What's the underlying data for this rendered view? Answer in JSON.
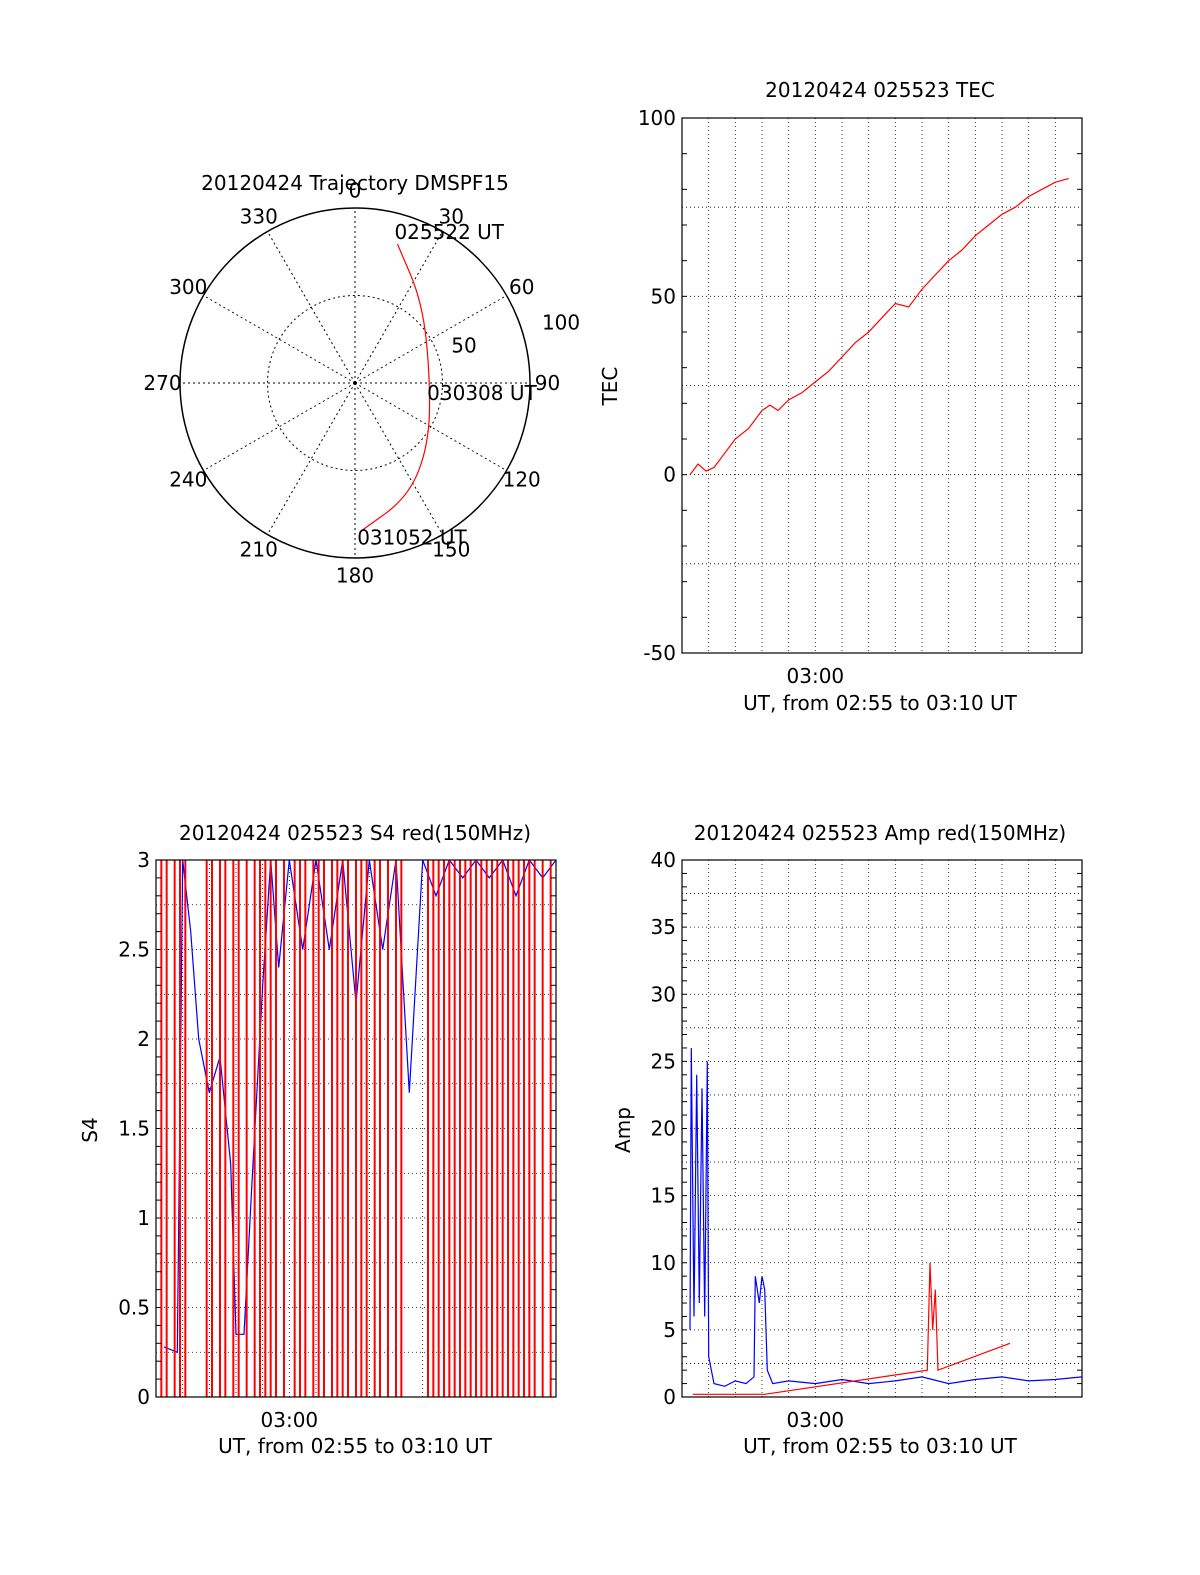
{
  "chart_data": [
    {
      "type": "polar",
      "title": "20120424 Trajectory DMSPF15",
      "azimuth_ticks": [
        "0",
        "30",
        "60",
        "90",
        "120",
        "150",
        "180",
        "210",
        "240",
        "270",
        "300",
        "330"
      ],
      "radial_ticks": [
        "50",
        "100"
      ],
      "radial_range": [
        0,
        100
      ],
      "grid": true,
      "series": [
        {
          "color": "#ff0000",
          "points": [
            {
              "az": 17,
              "r": 83
            },
            {
              "az": 40,
              "r": 60
            },
            {
              "az": 87,
              "r": 43
            },
            {
              "az": 130,
              "r": 55
            },
            {
              "az": 155,
              "r": 72
            },
            {
              "az": 178,
              "r": 85
            }
          ]
        }
      ],
      "annotations": [
        {
          "text": "025522 UT",
          "az": 17,
          "r": 83
        },
        {
          "text": "030308 UT",
          "az": 87,
          "r": 43
        },
        {
          "text": "031052 UT",
          "az": 178,
          "r": 85
        }
      ]
    },
    {
      "type": "line",
      "title": "20120424 025523 TEC",
      "xlabel": "UT, from 02:55 to 03:10 UT",
      "ylabel": "TEC",
      "xlim": [
        0,
        15
      ],
      "ylim": [
        -50,
        100
      ],
      "y_ticks": [
        "-50",
        "0",
        "50",
        "100"
      ],
      "x_ticks": [
        {
          "at": 5,
          "label": "03:00"
        }
      ],
      "grid": true,
      "series": [
        {
          "color": "#ff0000",
          "points": [
            [
              0.3,
              0
            ],
            [
              0.6,
              3
            ],
            [
              0.9,
              1
            ],
            [
              1.2,
              2
            ],
            [
              1.5,
              5
            ],
            [
              2.0,
              10
            ],
            [
              2.5,
              13
            ],
            [
              3.0,
              18
            ],
            [
              3.3,
              19.5
            ],
            [
              3.6,
              18
            ],
            [
              4.0,
              21
            ],
            [
              4.5,
              23
            ],
            [
              5.0,
              26
            ],
            [
              5.5,
              29
            ],
            [
              6.0,
              33
            ],
            [
              6.5,
              37
            ],
            [
              7.0,
              40
            ],
            [
              7.5,
              44
            ],
            [
              8.0,
              48
            ],
            [
              8.5,
              47
            ],
            [
              9.0,
              52
            ],
            [
              9.5,
              56
            ],
            [
              10.0,
              60
            ],
            [
              10.5,
              63
            ],
            [
              11.0,
              67
            ],
            [
              11.5,
              70
            ],
            [
              12.0,
              73
            ],
            [
              12.5,
              75
            ],
            [
              13.0,
              78
            ],
            [
              13.5,
              80
            ],
            [
              14.0,
              82
            ],
            [
              14.5,
              83
            ]
          ]
        }
      ]
    },
    {
      "type": "line",
      "title": "20120424 025523 S4 red(150MHz)",
      "xlabel": "UT, from 02:55 to 03:10 UT",
      "ylabel": "S4",
      "xlim": [
        0,
        15
      ],
      "ylim": [
        0,
        3
      ],
      "y_ticks": [
        "0",
        "0.5",
        "1",
        "1.5",
        "2",
        "2.5",
        "3"
      ],
      "x_ticks": [
        {
          "at": 5,
          "label": "03:00"
        }
      ],
      "grid": true,
      "series": [
        {
          "color": "#0000ff",
          "points": [
            [
              0.3,
              0.28
            ],
            [
              0.8,
              0.25
            ],
            [
              1.0,
              3
            ],
            [
              1.3,
              2.6
            ],
            [
              1.6,
              2.0
            ],
            [
              2.0,
              1.7
            ],
            [
              2.4,
              1.9
            ],
            [
              2.8,
              1.3
            ],
            [
              3.0,
              0.35
            ],
            [
              3.3,
              0.35
            ],
            [
              3.6,
              1.2
            ],
            [
              4.0,
              2.3
            ],
            [
              4.3,
              3
            ],
            [
              4.6,
              2.4
            ],
            [
              5.0,
              3
            ],
            [
              5.5,
              2.5
            ],
            [
              6.0,
              3
            ],
            [
              6.5,
              2.5
            ],
            [
              7.0,
              3
            ],
            [
              7.5,
              2.2
            ],
            [
              8.0,
              3
            ],
            [
              8.5,
              2.5
            ],
            [
              9.0,
              3
            ],
            [
              9.5,
              1.7
            ],
            [
              10.0,
              3
            ],
            [
              10.5,
              2.8
            ],
            [
              11.0,
              3
            ],
            [
              11.5,
              2.9
            ],
            [
              12.0,
              3
            ],
            [
              12.5,
              2.9
            ],
            [
              13.0,
              3
            ],
            [
              13.5,
              2.8
            ],
            [
              14.0,
              3
            ],
            [
              14.5,
              2.9
            ],
            [
              15.0,
              3
            ]
          ]
        },
        {
          "color": "#ff0000",
          "spikes": [
            0.2,
            0.4,
            0.7,
            0.9,
            1.1,
            1.9,
            2.1,
            2.4,
            2.6,
            2.9,
            3.1,
            3.4,
            3.7,
            3.9,
            4.1,
            4.3,
            4.5,
            4.8,
            5.2,
            5.4,
            5.6,
            5.9,
            6.1,
            6.3,
            6.6,
            6.8,
            7.0,
            7.2,
            7.5,
            7.7,
            7.9,
            8.2,
            8.4,
            8.7,
            9.0,
            9.2,
            10.2,
            10.4,
            10.6,
            10.8,
            11.0,
            11.2,
            11.4,
            11.6,
            11.8,
            12.0,
            12.2,
            12.4,
            12.6,
            12.8,
            13.0,
            13.2,
            13.4,
            13.6,
            13.8,
            14.0,
            14.2,
            14.5,
            14.8
          ]
        }
      ]
    },
    {
      "type": "line",
      "title": "20120424 025523 Amp red(150MHz)",
      "xlabel": "UT, from 02:55 to 03:10 UT",
      "ylabel": "Amp",
      "xlim": [
        0,
        15
      ],
      "ylim": [
        0,
        40
      ],
      "y_ticks": [
        "0",
        "5",
        "10",
        "15",
        "20",
        "25",
        "30",
        "35",
        "40"
      ],
      "x_ticks": [
        {
          "at": 5,
          "label": "03:00"
        }
      ],
      "grid": true,
      "series": [
        {
          "color": "#0000ff",
          "points": [
            [
              0.3,
              5
            ],
            [
              0.35,
              26
            ],
            [
              0.45,
              6
            ],
            [
              0.55,
              24
            ],
            [
              0.65,
              7
            ],
            [
              0.75,
              23
            ],
            [
              0.85,
              6
            ],
            [
              0.95,
              25
            ],
            [
              1.0,
              3
            ],
            [
              1.2,
              1
            ],
            [
              1.6,
              0.8
            ],
            [
              2.0,
              1.2
            ],
            [
              2.4,
              1
            ],
            [
              2.7,
              1.5
            ],
            [
              2.75,
              9
            ],
            [
              2.9,
              7
            ],
            [
              3.0,
              9
            ],
            [
              3.1,
              8
            ],
            [
              3.2,
              2
            ],
            [
              3.4,
              1
            ],
            [
              4.0,
              1.2
            ],
            [
              5.0,
              1
            ],
            [
              6.0,
              1.3
            ],
            [
              7.0,
              1
            ],
            [
              8.0,
              1.2
            ],
            [
              9.0,
              1.5
            ],
            [
              10.0,
              1
            ],
            [
              11.0,
              1.3
            ],
            [
              12.0,
              1.5
            ],
            [
              13.0,
              1.2
            ],
            [
              14.0,
              1.3
            ],
            [
              15.0,
              1.5
            ]
          ]
        },
        {
          "color": "#ff0000",
          "points": [
            [
              0.4,
              0.2
            ],
            [
              1.0,
              0.2
            ],
            [
              2.6,
              0.2
            ],
            [
              3.1,
              0.2
            ],
            [
              9.2,
              2
            ],
            [
              9.3,
              10
            ],
            [
              9.4,
              5
            ],
            [
              9.5,
              8
            ],
            [
              9.6,
              2
            ],
            [
              12.3,
              4
            ]
          ]
        }
      ]
    }
  ]
}
